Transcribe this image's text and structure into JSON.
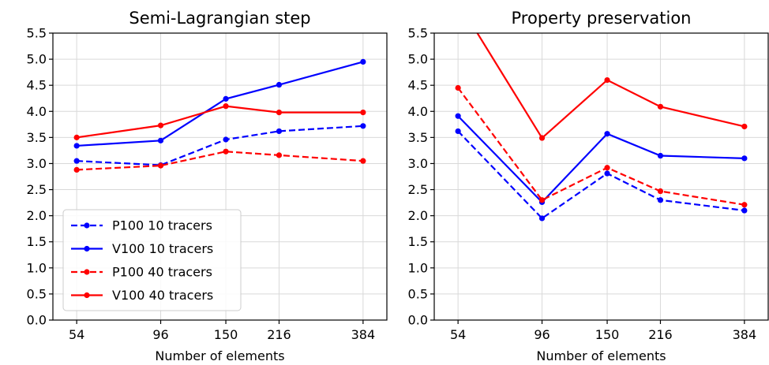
{
  "chart_data": [
    {
      "type": "line",
      "title": "Semi-Lagrangian step",
      "xlabel": "Number of elements",
      "ylabel": "",
      "x_scale": "log",
      "x": [
        54,
        96,
        150,
        216,
        384
      ],
      "xticklabels": [
        "54",
        "96",
        "150",
        "216",
        "384"
      ],
      "ylim": [
        0,
        5.5
      ],
      "yticks": [
        "0.0",
        "0.5",
        "1.0",
        "1.5",
        "2.0",
        "2.5",
        "3.0",
        "3.5",
        "4.0",
        "4.5",
        "5.0",
        "5.5"
      ],
      "grid": true,
      "legend": "lower-left",
      "series": [
        {
          "name": "P100 10 tracers",
          "color": "#0000ff",
          "style": "dashed",
          "values": [
            3.05,
            2.97,
            3.46,
            3.62,
            3.72
          ]
        },
        {
          "name": "V100 10 tracers",
          "color": "#0000ff",
          "style": "solid",
          "values": [
            3.34,
            3.44,
            4.24,
            4.51,
            4.95
          ]
        },
        {
          "name": "P100 40 tracers",
          "color": "#ff0000",
          "style": "dashed",
          "values": [
            2.88,
            2.96,
            3.23,
            3.16,
            3.05
          ]
        },
        {
          "name": "V100 40 tracers",
          "color": "#ff0000",
          "style": "solid",
          "values": [
            3.5,
            3.73,
            4.1,
            3.98,
            3.98
          ]
        }
      ]
    },
    {
      "type": "line",
      "title": "Property preservation",
      "xlabel": "Number of elements",
      "ylabel": "",
      "x_scale": "log",
      "x": [
        54,
        96,
        150,
        216,
        384
      ],
      "xticklabels": [
        "54",
        "96",
        "150",
        "216",
        "384"
      ],
      "ylim": [
        0,
        5.5
      ],
      "yticks": [
        "0.0",
        "0.5",
        "1.0",
        "1.5",
        "2.0",
        "2.5",
        "3.0",
        "3.5",
        "4.0",
        "4.5",
        "5.0",
        "5.5"
      ],
      "grid": true,
      "series": [
        {
          "name": "P100 10 tracers",
          "color": "#0000ff",
          "style": "dashed",
          "values": [
            3.62,
            1.95,
            2.81,
            2.3,
            2.1
          ]
        },
        {
          "name": "V100 10 tracers",
          "color": "#0000ff",
          "style": "solid",
          "values": [
            3.91,
            2.26,
            3.57,
            3.15,
            3.1
          ]
        },
        {
          "name": "P100 40 tracers",
          "color": "#ff0000",
          "style": "dashed",
          "values": [
            4.45,
            2.3,
            2.92,
            2.47,
            2.21
          ]
        },
        {
          "name": "V100 40 tracers",
          "color": "#ff0000",
          "style": "solid",
          "values": [
            6.1,
            3.49,
            4.6,
            4.09,
            3.71
          ]
        }
      ]
    }
  ]
}
